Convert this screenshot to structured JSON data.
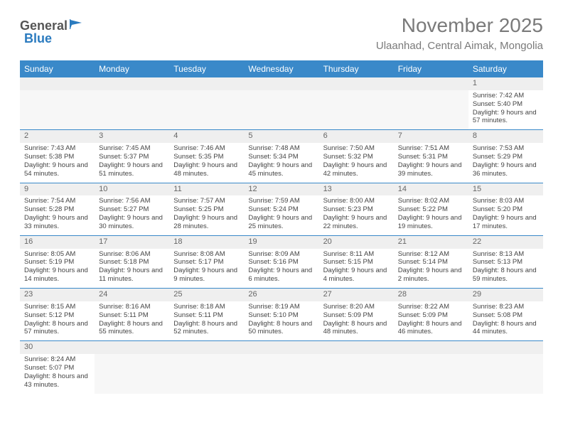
{
  "logo": {
    "general": "General",
    "blue": "Blue"
  },
  "title": "November 2025",
  "location": "Ulaanhad, Central Aimak, Mongolia",
  "colors": {
    "header_bg": "#3a89c9",
    "header_text": "#ffffff",
    "daynum_bg": "#efefef",
    "row_divider": "#3a89c9",
    "title_color": "#7a7a7a",
    "body_text": "#444444"
  },
  "day_headers": [
    "Sunday",
    "Monday",
    "Tuesday",
    "Wednesday",
    "Thursday",
    "Friday",
    "Saturday"
  ],
  "weeks": [
    [
      null,
      null,
      null,
      null,
      null,
      null,
      {
        "n": "1",
        "sr": "Sunrise: 7:42 AM",
        "ss": "Sunset: 5:40 PM",
        "dl": "Daylight: 9 hours and 57 minutes."
      }
    ],
    [
      {
        "n": "2",
        "sr": "Sunrise: 7:43 AM",
        "ss": "Sunset: 5:38 PM",
        "dl": "Daylight: 9 hours and 54 minutes."
      },
      {
        "n": "3",
        "sr": "Sunrise: 7:45 AM",
        "ss": "Sunset: 5:37 PM",
        "dl": "Daylight: 9 hours and 51 minutes."
      },
      {
        "n": "4",
        "sr": "Sunrise: 7:46 AM",
        "ss": "Sunset: 5:35 PM",
        "dl": "Daylight: 9 hours and 48 minutes."
      },
      {
        "n": "5",
        "sr": "Sunrise: 7:48 AM",
        "ss": "Sunset: 5:34 PM",
        "dl": "Daylight: 9 hours and 45 minutes."
      },
      {
        "n": "6",
        "sr": "Sunrise: 7:50 AM",
        "ss": "Sunset: 5:32 PM",
        "dl": "Daylight: 9 hours and 42 minutes."
      },
      {
        "n": "7",
        "sr": "Sunrise: 7:51 AM",
        "ss": "Sunset: 5:31 PM",
        "dl": "Daylight: 9 hours and 39 minutes."
      },
      {
        "n": "8",
        "sr": "Sunrise: 7:53 AM",
        "ss": "Sunset: 5:29 PM",
        "dl": "Daylight: 9 hours and 36 minutes."
      }
    ],
    [
      {
        "n": "9",
        "sr": "Sunrise: 7:54 AM",
        "ss": "Sunset: 5:28 PM",
        "dl": "Daylight: 9 hours and 33 minutes."
      },
      {
        "n": "10",
        "sr": "Sunrise: 7:56 AM",
        "ss": "Sunset: 5:27 PM",
        "dl": "Daylight: 9 hours and 30 minutes."
      },
      {
        "n": "11",
        "sr": "Sunrise: 7:57 AM",
        "ss": "Sunset: 5:25 PM",
        "dl": "Daylight: 9 hours and 28 minutes."
      },
      {
        "n": "12",
        "sr": "Sunrise: 7:59 AM",
        "ss": "Sunset: 5:24 PM",
        "dl": "Daylight: 9 hours and 25 minutes."
      },
      {
        "n": "13",
        "sr": "Sunrise: 8:00 AM",
        "ss": "Sunset: 5:23 PM",
        "dl": "Daylight: 9 hours and 22 minutes."
      },
      {
        "n": "14",
        "sr": "Sunrise: 8:02 AM",
        "ss": "Sunset: 5:22 PM",
        "dl": "Daylight: 9 hours and 19 minutes."
      },
      {
        "n": "15",
        "sr": "Sunrise: 8:03 AM",
        "ss": "Sunset: 5:20 PM",
        "dl": "Daylight: 9 hours and 17 minutes."
      }
    ],
    [
      {
        "n": "16",
        "sr": "Sunrise: 8:05 AM",
        "ss": "Sunset: 5:19 PM",
        "dl": "Daylight: 9 hours and 14 minutes."
      },
      {
        "n": "17",
        "sr": "Sunrise: 8:06 AM",
        "ss": "Sunset: 5:18 PM",
        "dl": "Daylight: 9 hours and 11 minutes."
      },
      {
        "n": "18",
        "sr": "Sunrise: 8:08 AM",
        "ss": "Sunset: 5:17 PM",
        "dl": "Daylight: 9 hours and 9 minutes."
      },
      {
        "n": "19",
        "sr": "Sunrise: 8:09 AM",
        "ss": "Sunset: 5:16 PM",
        "dl": "Daylight: 9 hours and 6 minutes."
      },
      {
        "n": "20",
        "sr": "Sunrise: 8:11 AM",
        "ss": "Sunset: 5:15 PM",
        "dl": "Daylight: 9 hours and 4 minutes."
      },
      {
        "n": "21",
        "sr": "Sunrise: 8:12 AM",
        "ss": "Sunset: 5:14 PM",
        "dl": "Daylight: 9 hours and 2 minutes."
      },
      {
        "n": "22",
        "sr": "Sunrise: 8:13 AM",
        "ss": "Sunset: 5:13 PM",
        "dl": "Daylight: 8 hours and 59 minutes."
      }
    ],
    [
      {
        "n": "23",
        "sr": "Sunrise: 8:15 AM",
        "ss": "Sunset: 5:12 PM",
        "dl": "Daylight: 8 hours and 57 minutes."
      },
      {
        "n": "24",
        "sr": "Sunrise: 8:16 AM",
        "ss": "Sunset: 5:11 PM",
        "dl": "Daylight: 8 hours and 55 minutes."
      },
      {
        "n": "25",
        "sr": "Sunrise: 8:18 AM",
        "ss": "Sunset: 5:11 PM",
        "dl": "Daylight: 8 hours and 52 minutes."
      },
      {
        "n": "26",
        "sr": "Sunrise: 8:19 AM",
        "ss": "Sunset: 5:10 PM",
        "dl": "Daylight: 8 hours and 50 minutes."
      },
      {
        "n": "27",
        "sr": "Sunrise: 8:20 AM",
        "ss": "Sunset: 5:09 PM",
        "dl": "Daylight: 8 hours and 48 minutes."
      },
      {
        "n": "28",
        "sr": "Sunrise: 8:22 AM",
        "ss": "Sunset: 5:09 PM",
        "dl": "Daylight: 8 hours and 46 minutes."
      },
      {
        "n": "29",
        "sr": "Sunrise: 8:23 AM",
        "ss": "Sunset: 5:08 PM",
        "dl": "Daylight: 8 hours and 44 minutes."
      }
    ],
    [
      {
        "n": "30",
        "sr": "Sunrise: 8:24 AM",
        "ss": "Sunset: 5:07 PM",
        "dl": "Daylight: 8 hours and 43 minutes."
      },
      null,
      null,
      null,
      null,
      null,
      null
    ]
  ]
}
